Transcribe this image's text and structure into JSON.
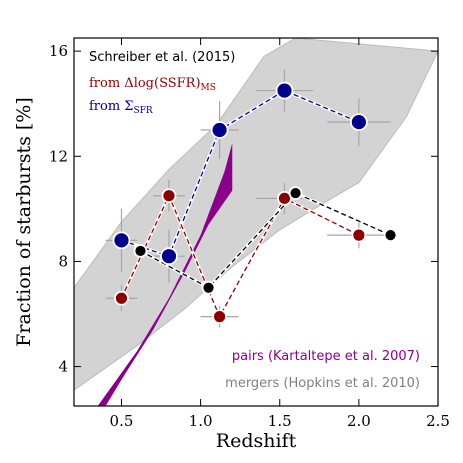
{
  "chart_data": {
    "type": "scatter",
    "xlabel": "Redshift",
    "ylabel": "Fraction of starbursts [%]",
    "xlim": [
      0.2,
      2.5
    ],
    "ylim": [
      2.5,
      16.5
    ],
    "x_ticks": [
      0.5,
      1.0,
      1.5,
      2.0,
      2.5
    ],
    "x_tick_labels": [
      "0.5",
      "1.0",
      "1.5",
      "2.0",
      "2.5"
    ],
    "y_ticks": [
      4,
      8,
      12,
      16
    ],
    "y_tick_labels": [
      "4",
      "8",
      "12",
      "16"
    ],
    "legend": {
      "placement": "top-left",
      "heading": "Schreiber et al. (2015)",
      "entry_red": "from Δlog(SSFR)",
      "entry_red_sub": "MS",
      "entry_blue": "from Σ",
      "entry_blue_sub": "SFR"
    },
    "annotations": {
      "pairs": "pairs (Kartaltepe et al. 2007)",
      "mergers": "mergers (Hopkins et al. 2010)"
    },
    "colors": {
      "red": "#8b0000",
      "blue": "#00008b",
      "black": "#000000",
      "purple": "#8b008b",
      "grey_band": "#d3d3d3",
      "grey_text": "#808080"
    },
    "series": [
      {
        "color": "#00008b",
        "points": [
          {
            "x": 0.5,
            "y": 8.8,
            "xerr": 0.1,
            "yerr": 1.2
          },
          {
            "x": 0.8,
            "y": 8.2,
            "xerr": 0.1,
            "yerr": 1.0
          },
          {
            "x": 1.12,
            "y": 13.0,
            "xerr": 0.12,
            "yerr": 1.1
          },
          {
            "x": 1.53,
            "y": 14.5,
            "xerr": 0.18,
            "yerr": 0.8
          },
          {
            "x": 2.0,
            "y": 13.3,
            "xerr": 0.2,
            "yerr": 0.9
          }
        ]
      },
      {
        "color": "#8b0000",
        "points": [
          {
            "x": 0.5,
            "y": 6.6,
            "xerr": 0.1,
            "yerr": 0.5
          },
          {
            "x": 0.8,
            "y": 10.5,
            "xerr": 0.1,
            "yerr": 0.6
          },
          {
            "x": 1.12,
            "y": 5.9,
            "xerr": 0.12,
            "yerr": 0.4
          },
          {
            "x": 1.53,
            "y": 10.4,
            "xerr": 0.18,
            "yerr": 0.6
          },
          {
            "x": 2.0,
            "y": 9.0,
            "xerr": 0.2,
            "yerr": 0.5
          }
        ]
      },
      {
        "color": "#000000",
        "points": [
          {
            "x": 0.62,
            "y": 8.4
          },
          {
            "x": 1.05,
            "y": 7.0
          },
          {
            "x": 1.6,
            "y": 10.6
          },
          {
            "x": 2.2,
            "y": 9.0
          }
        ]
      }
    ],
    "mergers_band": {
      "upper": [
        [
          0.2,
          7.0
        ],
        [
          0.5,
          9.5
        ],
        [
          0.8,
          11.5
        ],
        [
          1.1,
          13.2
        ],
        [
          1.4,
          15.8
        ],
        [
          1.6,
          16.5
        ]
      ],
      "lower": [
        [
          2.5,
          16.0
        ],
        [
          2.3,
          13.5
        ],
        [
          2.0,
          11.0
        ],
        [
          1.8,
          10.3
        ],
        [
          1.5,
          9.2
        ],
        [
          1.2,
          7.8
        ],
        [
          0.9,
          6.2
        ],
        [
          0.6,
          4.8
        ],
        [
          0.2,
          3.1
        ]
      ]
    },
    "pairs_band": {
      "upper": [
        [
          0.35,
          2.5
        ],
        [
          0.6,
          4.6
        ],
        [
          0.8,
          6.6
        ],
        [
          1.0,
          9.0
        ],
        [
          1.15,
          11.4
        ],
        [
          1.2,
          12.5
        ]
      ],
      "lower": [
        [
          1.2,
          10.7
        ],
        [
          1.05,
          9.4
        ],
        [
          0.9,
          7.6
        ],
        [
          0.7,
          5.4
        ],
        [
          0.5,
          3.5
        ],
        [
          0.4,
          2.5
        ]
      ]
    }
  }
}
